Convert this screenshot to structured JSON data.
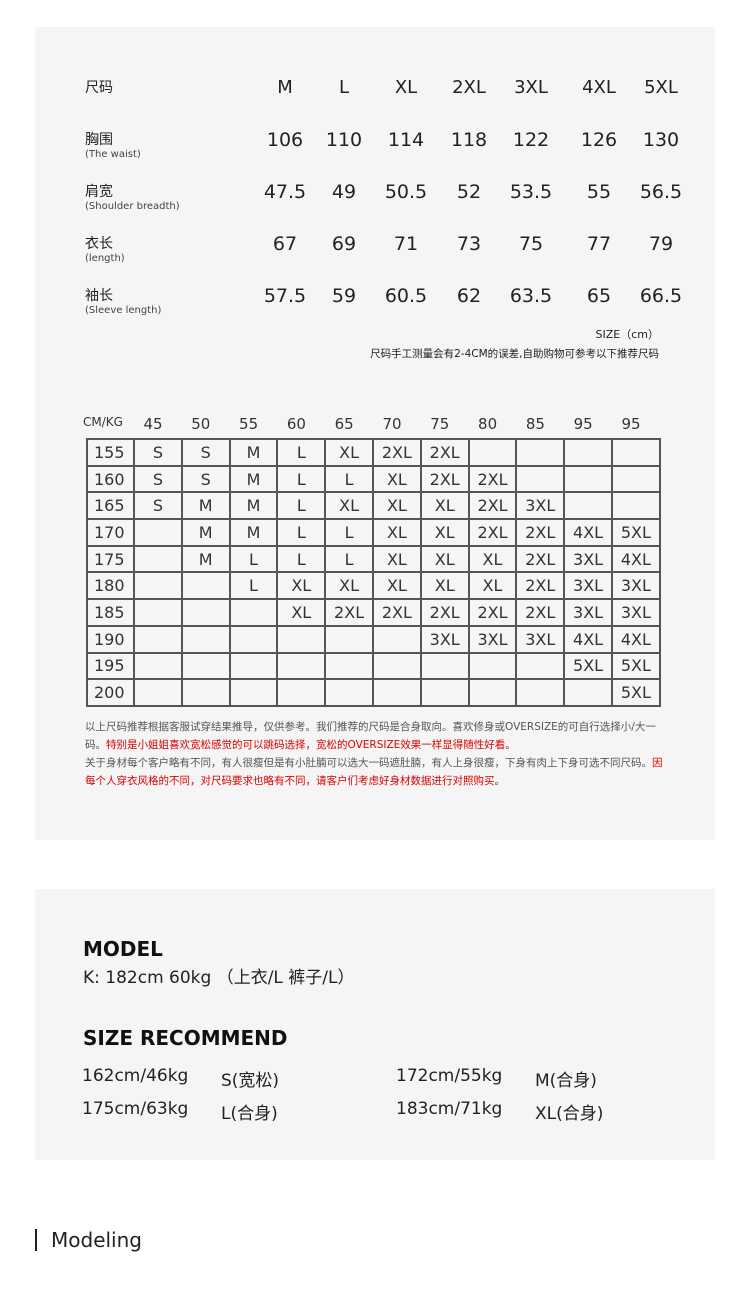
{
  "measure": {
    "header_label": "尺码",
    "sizes": [
      "M",
      "L",
      "XL",
      "2XL",
      "3XL",
      "4XL",
      "5XL"
    ],
    "rows": [
      {
        "label": "胸围",
        "sub": "(The waist)",
        "values": [
          "106",
          "110",
          "114",
          "118",
          "122",
          "126",
          "130"
        ]
      },
      {
        "label": "肩宽",
        "sub": "(Shoulder breadth)",
        "values": [
          "47.5",
          "49",
          "50.5",
          "52",
          "53.5",
          "55",
          "56.5"
        ]
      },
      {
        "label": "衣长",
        "sub": "(length)",
        "values": [
          "67",
          "69",
          "71",
          "73",
          "75",
          "77",
          "79"
        ]
      },
      {
        "label": "袖长",
        "sub": "(Sleeve length)",
        "values": [
          "57.5",
          "59",
          "60.5",
          "62",
          "63.5",
          "65",
          "66.5"
        ]
      }
    ],
    "unit_note": "SIZE（cm）",
    "error_note": "尺码手工测量会有2-4CM的误差,自助购物可参考以下推荐尺码"
  },
  "grid": {
    "corner": "CM/KG",
    "weights": [
      "45",
      "50",
      "55",
      "60",
      "65",
      "70",
      "75",
      "80",
      "85",
      "95",
      "95"
    ],
    "rows": [
      {
        "height": "155",
        "cells": [
          "S",
          "S",
          "M",
          "L",
          "XL",
          "2XL",
          "2XL",
          "",
          "",
          "",
          ""
        ]
      },
      {
        "height": "160",
        "cells": [
          "S",
          "S",
          "M",
          "L",
          "L",
          "XL",
          "2XL",
          "2XL",
          "",
          "",
          ""
        ]
      },
      {
        "height": "165",
        "cells": [
          "S",
          "M",
          "M",
          "L",
          "XL",
          "XL",
          "XL",
          "2XL",
          "3XL",
          "",
          ""
        ]
      },
      {
        "height": "170",
        "cells": [
          "",
          "M",
          "M",
          "L",
          "L",
          "XL",
          "XL",
          "2XL",
          "2XL",
          "4XL",
          "5XL"
        ]
      },
      {
        "height": "175",
        "cells": [
          "",
          "M",
          "L",
          "L",
          "L",
          "XL",
          "XL",
          "XL",
          "2XL",
          "3XL",
          "4XL"
        ]
      },
      {
        "height": "180",
        "cells": [
          "",
          "",
          "L",
          "XL",
          "XL",
          "XL",
          "XL",
          "XL",
          "2XL",
          "3XL",
          "3XL"
        ]
      },
      {
        "height": "185",
        "cells": [
          "",
          "",
          "",
          "XL",
          "2XL",
          "2XL",
          "2XL",
          "2XL",
          "2XL",
          "3XL",
          "3XL"
        ]
      },
      {
        "height": "190",
        "cells": [
          "",
          "",
          "",
          "",
          "",
          "",
          "3XL",
          "3XL",
          "3XL",
          "4XL",
          "4XL"
        ]
      },
      {
        "height": "195",
        "cells": [
          "",
          "",
          "",
          "",
          "",
          "",
          "",
          "",
          "",
          "5XL",
          "5XL"
        ]
      },
      {
        "height": "200",
        "cells": [
          "",
          "",
          "",
          "",
          "",
          "",
          "",
          "",
          "",
          "",
          "5XL"
        ]
      }
    ]
  },
  "notes": {
    "p1": "以上尺码推荐根据客服试穿结果推导，仅供参考。我们推荐的尺码是合身取向。喜欢修身或OVERSIZE的可自行选择小/大一码。",
    "p1_red": "特别是小姐姐喜欢宽松感觉的可以跳码选择，宽松的OVERSIZE效果一样显得随性好看。",
    "p2": "关于身材每个客户略有不同，有人很瘦但是有小肚腩可以选大一码遮肚腩，有人上身很瘦，下身有肉上下身可选不同尺码。",
    "p2_red": "因每个人穿衣风格的不同，对尺码要求也略有不同，请客户们考虑好身材数据进行对照购买。",
    "red_color": "#dd0000"
  },
  "model": {
    "title": "MODEL",
    "info": "K: 182cm 60kg （上衣/L 裤子/L）"
  },
  "recommend": {
    "title": "SIZE RECOMMEND",
    "items": [
      {
        "body": "162cm/46kg",
        "size": "S(宽松)"
      },
      {
        "body": "172cm/55kg",
        "size": "M(合身)"
      },
      {
        "body": "175cm/63kg",
        "size": "L(合身)"
      },
      {
        "body": "183cm/71kg",
        "size": "XL(合身)"
      }
    ]
  },
  "section_title": "Modeling"
}
